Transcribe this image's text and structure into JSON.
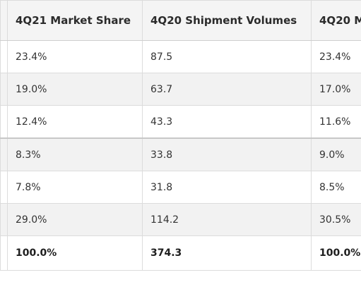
{
  "table": {
    "headers": [
      "4Q21 Market Share",
      "4Q20 Shipment Volumes",
      "4Q20 M"
    ],
    "rows": [
      [
        "23.4%",
        "87.5",
        "23.4%"
      ],
      [
        "19.0%",
        "63.7",
        "17.0%"
      ],
      [
        "12.4%",
        "43.3",
        "11.6%"
      ],
      [
        "8.3%",
        "33.8",
        "9.0%"
      ],
      [
        "7.8%",
        "31.8",
        "8.5%"
      ],
      [
        "29.0%",
        "114.2",
        "30.5%"
      ],
      [
        "100.0%",
        "374.3",
        "100.0%"
      ]
    ]
  }
}
